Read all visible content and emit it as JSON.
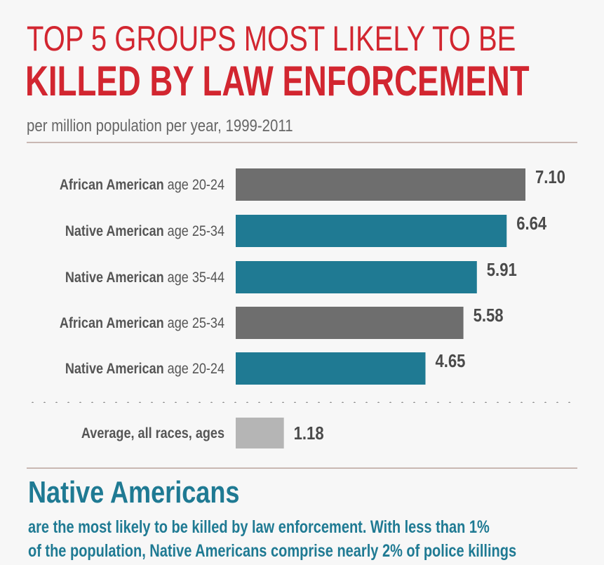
{
  "header": {
    "title_line1": "TOP 5 GROUPS MOST LIKELY TO BE",
    "title_line2": "KILLED BY LAW ENFORCEMENT",
    "subtitle": "per million population per year, 1999-2011"
  },
  "footer": {
    "heading": "Native Americans",
    "line1": "are the most likely to be killed by law enforcement. With less than 1%",
    "line2": "of the population, Native Americans comprise nearly 2% of police killings"
  },
  "colors": {
    "title_red": "#d22630",
    "african_american": "#6e6e6e",
    "native_american": "#1f7a93",
    "average": "#b5b5b5",
    "label_text": "#555555"
  },
  "chart_data": {
    "type": "bar",
    "orientation": "horizontal",
    "title": "TOP 5 GROUPS MOST LIKELY TO BE KILLED BY LAW ENFORCEMENT",
    "subtitle": "per million population per year, 1999-2011",
    "xlim": [
      0,
      7.1
    ],
    "grid": false,
    "categories": [
      {
        "group": "African American",
        "age": "age 20-24",
        "value": 7.1,
        "label": "7.10",
        "color_key": "african_american"
      },
      {
        "group": "Native American",
        "age": "age 25-34",
        "value": 6.64,
        "label": "6.64",
        "color_key": "native_american"
      },
      {
        "group": "Native American",
        "age": "age 35-44",
        "value": 5.91,
        "label": "5.91",
        "color_key": "native_american"
      },
      {
        "group": "African American",
        "age": "age 25-34",
        "value": 5.58,
        "label": "5.58",
        "color_key": "african_american"
      },
      {
        "group": "Native American",
        "age": "age 20-24",
        "value": 4.65,
        "label": "4.65",
        "color_key": "native_american"
      }
    ],
    "average": {
      "group": "Average, all races, ages",
      "age": "",
      "value": 1.18,
      "label": "1.18",
      "color_key": "average"
    }
  }
}
